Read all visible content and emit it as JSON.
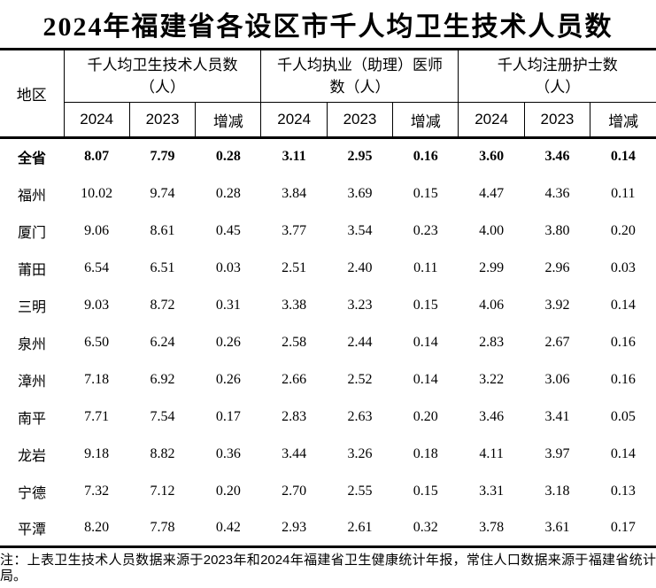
{
  "title": "2024年福建省各设区市千人均卫生技术人员数",
  "note": "注：上表卫生技术人员数据来源于2023年和2024年福建省卫生健康统计年报，常住人口数据来源于福建省统计局。",
  "colors": {
    "text": "#000000",
    "background": "#ffffff",
    "border": "#000000"
  },
  "chart_data": {
    "type": "table",
    "title": "2024年福建省各设区市千人均卫生技术人员数",
    "region_header": "地区",
    "column_groups": [
      {
        "label": "千人均卫生技术人员数（人）",
        "label_lines": [
          "千人均卫生技术人员数",
          "（人）"
        ],
        "sub_columns": [
          "2024",
          "2023",
          "增减"
        ]
      },
      {
        "label": "千人均执业（助理）医师数（人）",
        "label_lines": [
          "千人均执业（助理）医师",
          "数（人）"
        ],
        "sub_columns": [
          "2024",
          "2023",
          "增减"
        ]
      },
      {
        "label": "千人均注册护士数（人）",
        "label_lines": [
          "千人均注册护士数",
          "（人）"
        ],
        "sub_columns": [
          "2024",
          "2023",
          "增减"
        ]
      }
    ],
    "rows": [
      {
        "region": "全省",
        "bold": true,
        "values": [
          "8.07",
          "7.79",
          "0.28",
          "3.11",
          "2.95",
          "0.16",
          "3.60",
          "3.46",
          "0.14"
        ]
      },
      {
        "region": "福州",
        "bold": false,
        "values": [
          "10.02",
          "9.74",
          "0.28",
          "3.84",
          "3.69",
          "0.15",
          "4.47",
          "4.36",
          "0.11"
        ]
      },
      {
        "region": "厦门",
        "bold": false,
        "values": [
          "9.06",
          "8.61",
          "0.45",
          "3.77",
          "3.54",
          "0.23",
          "4.00",
          "3.80",
          "0.20"
        ]
      },
      {
        "region": "莆田",
        "bold": false,
        "values": [
          "6.54",
          "6.51",
          "0.03",
          "2.51",
          "2.40",
          "0.11",
          "2.99",
          "2.96",
          "0.03"
        ]
      },
      {
        "region": "三明",
        "bold": false,
        "values": [
          "9.03",
          "8.72",
          "0.31",
          "3.38",
          "3.23",
          "0.15",
          "4.06",
          "3.92",
          "0.14"
        ]
      },
      {
        "region": "泉州",
        "bold": false,
        "values": [
          "6.50",
          "6.24",
          "0.26",
          "2.58",
          "2.44",
          "0.14",
          "2.83",
          "2.67",
          "0.16"
        ]
      },
      {
        "region": "漳州",
        "bold": false,
        "values": [
          "7.18",
          "6.92",
          "0.26",
          "2.66",
          "2.52",
          "0.14",
          "3.22",
          "3.06",
          "0.16"
        ]
      },
      {
        "region": "南平",
        "bold": false,
        "values": [
          "7.71",
          "7.54",
          "0.17",
          "2.83",
          "2.63",
          "0.20",
          "3.46",
          "3.41",
          "0.05"
        ]
      },
      {
        "region": "龙岩",
        "bold": false,
        "values": [
          "9.18",
          "8.82",
          "0.36",
          "3.44",
          "3.26",
          "0.18",
          "4.11",
          "3.97",
          "0.14"
        ]
      },
      {
        "region": "宁德",
        "bold": false,
        "values": [
          "7.32",
          "7.12",
          "0.20",
          "2.70",
          "2.55",
          "0.15",
          "3.31",
          "3.18",
          "0.13"
        ]
      },
      {
        "region": "平潭",
        "bold": false,
        "values": [
          "8.20",
          "7.78",
          "0.42",
          "2.93",
          "2.61",
          "0.32",
          "3.78",
          "3.61",
          "0.17"
        ]
      }
    ]
  }
}
